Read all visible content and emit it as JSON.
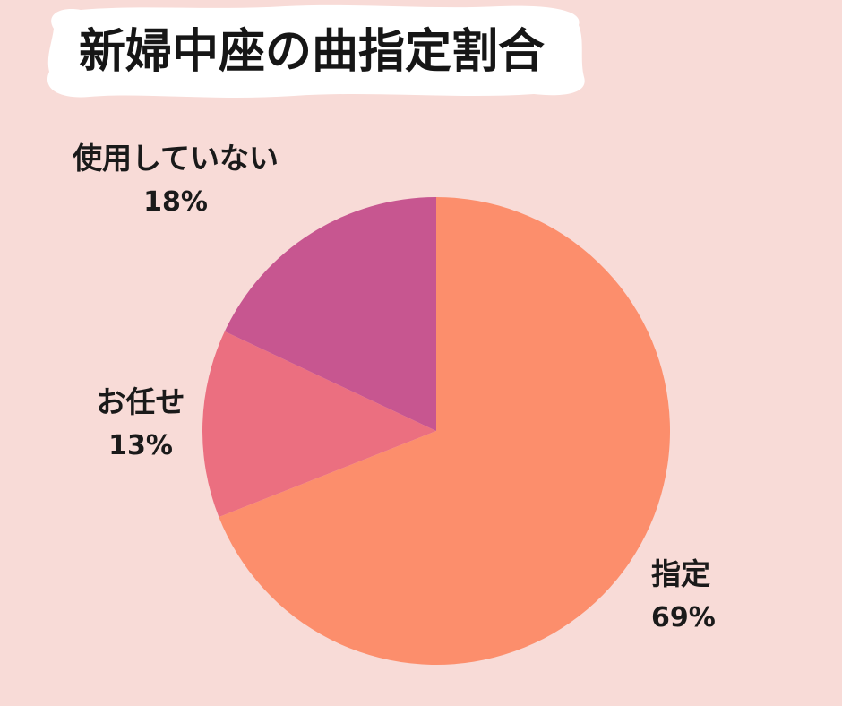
{
  "title": {
    "text": "新婦中座の曲指定割合"
  },
  "colors": {
    "background": "#F8DBD7",
    "banner": "#FFFFFF",
    "text": "#1A1A1A"
  },
  "chart_data": {
    "type": "pie",
    "title": "新婦中座の曲指定割合",
    "start_angle_deg": 0,
    "direction": "clockwise",
    "legend_position": "none",
    "labels_position": "outside",
    "slices": [
      {
        "label": "指定",
        "value": 69,
        "pct_label": "69%",
        "color": "#FC8E6C"
      },
      {
        "label": "お任せ",
        "value": 13,
        "pct_label": "13%",
        "color": "#EB6F80"
      },
      {
        "label": "使用していない",
        "value": 18,
        "pct_label": "18%",
        "color": "#C75690"
      }
    ]
  }
}
